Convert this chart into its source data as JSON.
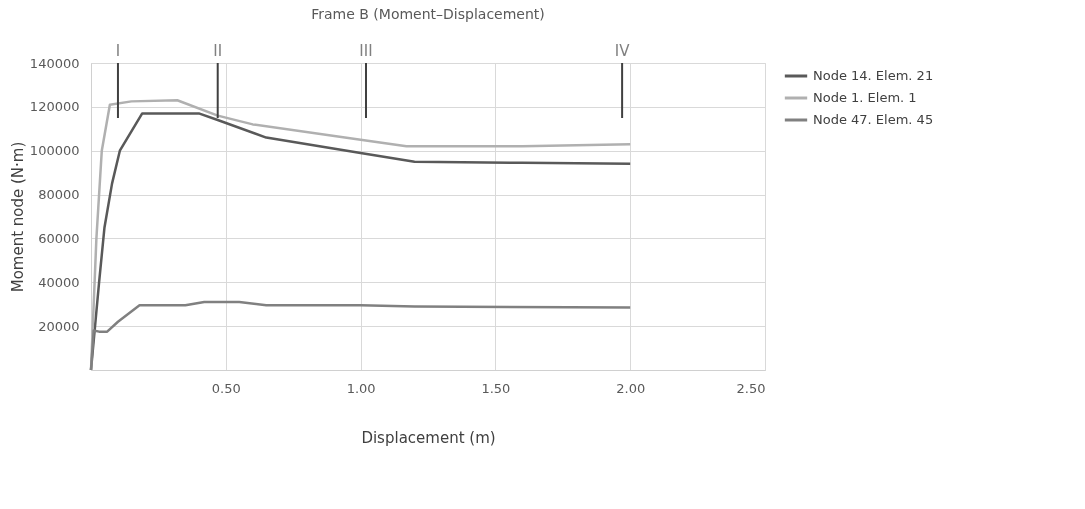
{
  "chart_data": {
    "type": "line",
    "title": "Frame B (Moment–Displacement)",
    "xlabel": "Displacement (m)",
    "ylabel": "Moment node (N·m)",
    "xlim": [
      0,
      2.5
    ],
    "xticks": [
      {
        "value": 0,
        "label": null
      },
      {
        "value": 0.5,
        "label": "0.50"
      },
      {
        "value": 1.0,
        "label": "1.00"
      },
      {
        "value": 1.5,
        "label": "1.50"
      },
      {
        "value": 2.0,
        "label": "2.00"
      },
      {
        "value": 2.5,
        "label": "2.50"
      }
    ],
    "ylim": [
      0,
      140000
    ],
    "yticks": [
      {
        "value": 0,
        "label": null
      },
      20000,
      40000,
      60000,
      80000,
      100000,
      120000,
      140000
    ],
    "grid": true,
    "legend": "right",
    "marker": "none",
    "line_style": "solid",
    "series": [
      {
        "name": "Node 14. Elem. 21",
        "color": "#595959",
        "x": [
          0,
          0.03,
          0.05,
          0.078,
          0.107,
          0.19,
          0.4,
          0.47,
          0.65,
          1.0,
          1.2,
          1.6,
          2.0
        ],
        "values": [
          0,
          40000,
          65000,
          85000,
          100000,
          117000,
          117000,
          114000,
          106000,
          99000,
          95000,
          94500,
          94000
        ]
      },
      {
        "name": "Node 1. Elem. 1",
        "color": "#b0b0b0",
        "x": [
          0,
          0.02,
          0.04,
          0.07,
          0.15,
          0.32,
          0.47,
          0.6,
          1.0,
          1.17,
          1.6,
          2.0
        ],
        "values": [
          0,
          60000,
          100000,
          121000,
          122500,
          123000,
          116000,
          112000,
          105000,
          102000,
          102000,
          103000
        ]
      },
      {
        "name": "Node 47. Elem. 45",
        "color": "#808080",
        "x": [
          0,
          0.01,
          0.03,
          0.06,
          0.1,
          0.18,
          0.35,
          0.42,
          0.55,
          0.65,
          1.0,
          1.2,
          2.0
        ],
        "values": [
          0,
          18000,
          17500,
          17500,
          22000,
          29500,
          29500,
          31000,
          31000,
          29500,
          29500,
          29000,
          28500
        ]
      }
    ],
    "ref_lines": [
      {
        "axis": "x",
        "value": 0.1,
        "label": "I",
        "color": "#404040"
      },
      {
        "axis": "x",
        "value": 0.47,
        "label": "II",
        "color": "#404040"
      },
      {
        "axis": "x",
        "value": 1.02,
        "label": "III",
        "color": "#404040"
      },
      {
        "axis": "x",
        "value": 1.97,
        "label": "IV",
        "color": "#404040"
      }
    ]
  }
}
